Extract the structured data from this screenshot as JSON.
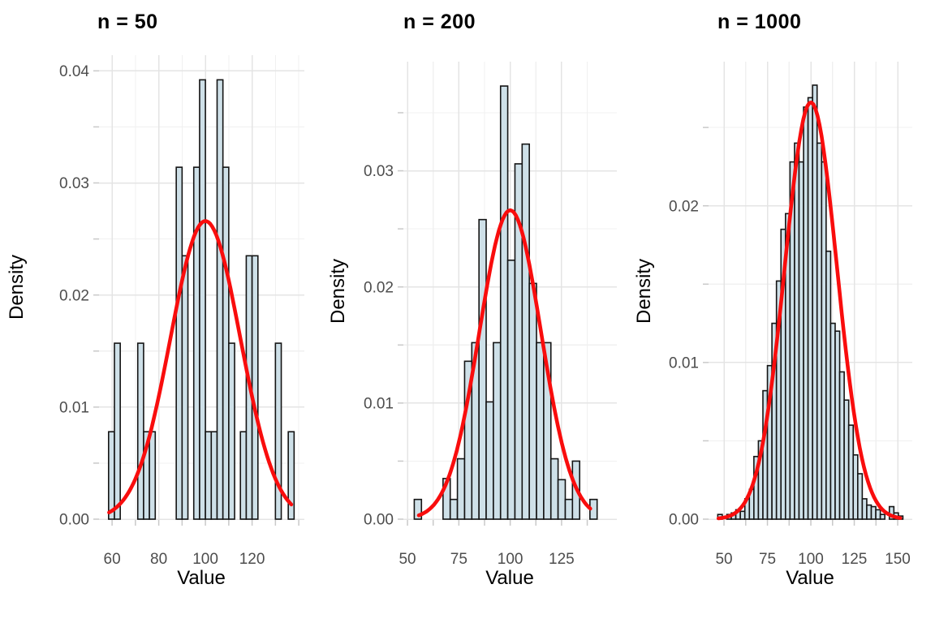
{
  "figure": {
    "background": "#ffffff",
    "style": {
      "bar_fill": "#cee0e8",
      "bar_stroke": "#141414",
      "curve_color": "#f90d0d",
      "grid_major": "#e4e4e4",
      "grid_minor": "#f0f0f0",
      "tick_mark_color": "#c9c9c9",
      "tick_label_color": "#4d4d4d",
      "title_color": "#000000"
    }
  },
  "chart_data": [
    {
      "type": "bar",
      "subtype": "histogram-with-normal-curve",
      "title": "n = 50",
      "xlabel": "Value",
      "ylabel": "Density",
      "xlim": [
        54.4,
        142.4
      ],
      "ylim": [
        0,
        0.0414
      ],
      "x_ticks": {
        "values": [
          60,
          80,
          100,
          120
        ],
        "labels": [
          "60",
          "80",
          "100",
          "120"
        ]
      },
      "x_minor_gridlines": [
        70,
        90,
        110,
        130,
        140
      ],
      "y_ticks": {
        "values": [
          0,
          0.01,
          0.02,
          0.03,
          0.04
        ],
        "labels": [
          "0.00",
          "0.01",
          "0.02",
          "0.03",
          "0.04"
        ]
      },
      "y_minor_gridlines": [
        0.005,
        0.015,
        0.025,
        0.035
      ],
      "binwidth": 2.5,
      "bars": [
        [
          58.5,
          0.0078
        ],
        [
          61.0,
          0.0157
        ],
        [
          71.0,
          0.0157
        ],
        [
          73.5,
          0.0078
        ],
        [
          76.0,
          0.0078
        ],
        [
          87.5,
          0.0314
        ],
        [
          90.0,
          0.0235
        ],
        [
          95.0,
          0.0314
        ],
        [
          97.5,
          0.0392
        ],
        [
          100.0,
          0.0078
        ],
        [
          102.5,
          0.0078
        ],
        [
          105.0,
          0.0392
        ],
        [
          107.5,
          0.0314
        ],
        [
          110.0,
          0.0157
        ],
        [
          115.0,
          0.0078
        ],
        [
          117.5,
          0.0235
        ],
        [
          120.0,
          0.0235
        ],
        [
          130.0,
          0.0157
        ],
        [
          135.5,
          0.0078
        ]
      ],
      "curve": {
        "shape": "normal-density",
        "mean": 100,
        "sd": 15,
        "peak_density": 0.0266,
        "x_range": [
          58.7,
          136.8
        ]
      }
    },
    {
      "type": "bar",
      "subtype": "histogram-with-normal-curve",
      "title": "n = 200",
      "xlabel": "Value",
      "ylabel": "Density",
      "xlim": [
        48.0,
        151.9
      ],
      "ylim": [
        0,
        0.0394
      ],
      "x_ticks": {
        "values": [
          50,
          75,
          100,
          125
        ],
        "labels": [
          "50",
          "75",
          "100",
          "125"
        ]
      },
      "x_minor_gridlines": [
        62.5,
        87.5,
        112.5,
        137.5
      ],
      "y_ticks": {
        "values": [
          0,
          0.01,
          0.02,
          0.03
        ],
        "labels": [
          "0.00",
          "0.01",
          "0.02",
          "0.03"
        ]
      },
      "y_minor_gridlines": [
        0.005,
        0.015,
        0.025,
        0.035
      ],
      "binwidth": 3.5,
      "bars": [
        [
          53.3,
          0.0017
        ],
        [
          67.3,
          0.0035
        ],
        [
          70.8,
          0.0017
        ],
        [
          74.3,
          0.0052
        ],
        [
          77.8,
          0.0136
        ],
        [
          81.3,
          0.0152
        ],
        [
          84.8,
          0.0258
        ],
        [
          88.3,
          0.0101
        ],
        [
          91.8,
          0.0152
        ],
        [
          95.3,
          0.0373
        ],
        [
          98.8,
          0.0223
        ],
        [
          102.3,
          0.0306
        ],
        [
          105.8,
          0.0323
        ],
        [
          109.3,
          0.0203
        ],
        [
          112.8,
          0.0152
        ],
        [
          116.3,
          0.0152
        ],
        [
          119.8,
          0.0052
        ],
        [
          123.3,
          0.0034
        ],
        [
          126.8,
          0.0017
        ],
        [
          130.3,
          0.005
        ],
        [
          138.8,
          0.0017
        ]
      ],
      "curve": {
        "shape": "normal-density",
        "mean": 100,
        "sd": 15,
        "peak_density": 0.0266,
        "x_range": [
          55.5,
          139.0
        ]
      }
    },
    {
      "type": "bar",
      "subtype": "histogram-with-normal-curve",
      "title": "n = 1000",
      "xlabel": "Value",
      "ylabel": "Density",
      "xlim": [
        41.1,
        158.4
      ],
      "ylim": [
        0,
        0.0292
      ],
      "x_ticks": {
        "values": [
          50,
          75,
          100,
          125,
          150
        ],
        "labels": [
          "50",
          "75",
          "100",
          "125",
          "150"
        ]
      },
      "x_minor_gridlines": [
        62.5,
        87.5,
        112.5,
        137.5
      ],
      "y_ticks": {
        "values": [
          0,
          0.01,
          0.02
        ],
        "labels": [
          "0.00",
          "0.01",
          "0.02"
        ]
      },
      "y_minor_gridlines": [
        0.005,
        0.015,
        0.025
      ],
      "binwidth": 2.6,
      "bars": [
        [
          46.4,
          0.0003
        ],
        [
          51.6,
          0.0003
        ],
        [
          54.2,
          0.0004
        ],
        [
          56.8,
          0.0006
        ],
        [
          59.4,
          0.0005
        ],
        [
          62.0,
          0.0013
        ],
        [
          64.6,
          0.0019
        ],
        [
          67.2,
          0.004
        ],
        [
          69.8,
          0.005
        ],
        [
          72.4,
          0.0082
        ],
        [
          75.0,
          0.0098
        ],
        [
          77.6,
          0.0125
        ],
        [
          80.2,
          0.0152
        ],
        [
          82.8,
          0.0185
        ],
        [
          85.4,
          0.0195
        ],
        [
          88.0,
          0.0228
        ],
        [
          90.6,
          0.024
        ],
        [
          93.2,
          0.0228
        ],
        [
          95.8,
          0.0263
        ],
        [
          98.4,
          0.0269
        ],
        [
          101.0,
          0.0277
        ],
        [
          103.6,
          0.024
        ],
        [
          106.2,
          0.0228
        ],
        [
          108.8,
          0.0171
        ],
        [
          111.4,
          0.0125
        ],
        [
          114.0,
          0.012
        ],
        [
          116.6,
          0.0094
        ],
        [
          119.2,
          0.0076
        ],
        [
          121.8,
          0.006
        ],
        [
          124.4,
          0.0041
        ],
        [
          127.0,
          0.0029
        ],
        [
          129.6,
          0.0013
        ],
        [
          132.2,
          0.0009
        ],
        [
          134.8,
          0.0008
        ],
        [
          137.4,
          0.0006
        ],
        [
          140.0,
          0.0003
        ],
        [
          145.2,
          0.0008
        ],
        [
          147.8,
          0.0004
        ],
        [
          150.4,
          0.0002
        ]
      ],
      "curve": {
        "shape": "normal-density",
        "mean": 100,
        "sd": 15,
        "peak_density": 0.0266,
        "x_range": [
          46.8,
          151.5
        ]
      }
    }
  ]
}
